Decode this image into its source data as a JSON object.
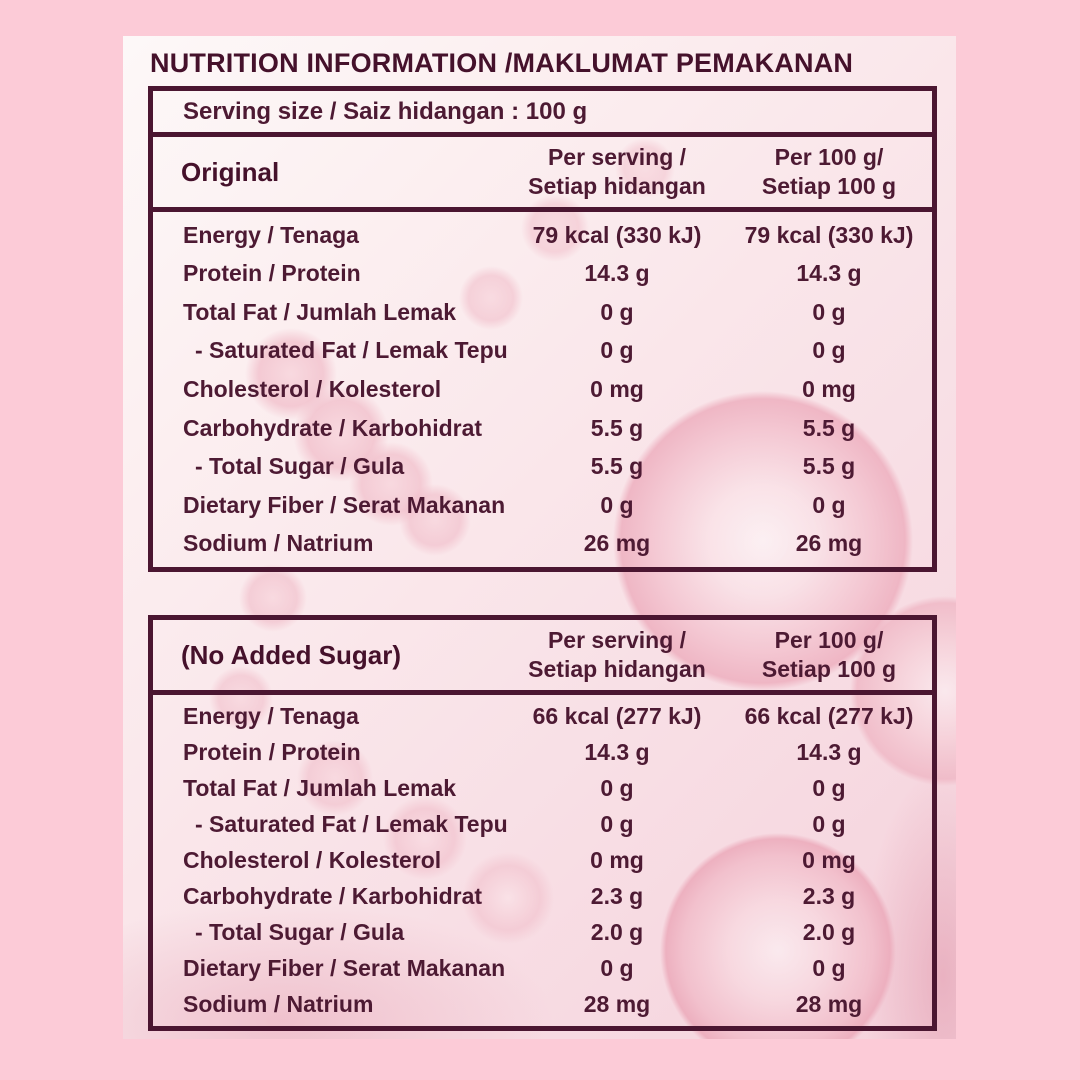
{
  "page": {
    "title": "NUTRITION INFORMATION /MAKLUMAT PEMAKANAN",
    "serving_size": "Serving size / Saiz hidangan : 100 g"
  },
  "colors": {
    "outer_background": "#fccbd7",
    "panel_background": "#f9e3e8",
    "maroon_text": "#4d1a33",
    "maroon_border": "#4b1631"
  },
  "tables": [
    {
      "name": "Original",
      "columns": [
        {
          "line1": "Per serving /",
          "line2": "Setiap hidangan"
        },
        {
          "line1": "Per 100 g/",
          "line2": "Setiap 100 g"
        }
      ],
      "rows": [
        {
          "label": "Energy / Tenaga",
          "per_serving": "79 kcal (330 kJ)",
          "per_100g": "79 kcal (330 kJ)",
          "indent": false
        },
        {
          "label": "Protein / Protein",
          "per_serving": "14.3 g",
          "per_100g": "14.3 g",
          "indent": false
        },
        {
          "label": "Total Fat / Jumlah Lemak",
          "per_serving": "0 g",
          "per_100g": "0 g",
          "indent": false
        },
        {
          "label": "- Saturated Fat / Lemak Tepu",
          "per_serving": "0 g",
          "per_100g": "0 g",
          "indent": true
        },
        {
          "label": "Cholesterol / Kolesterol",
          "per_serving": "0 mg",
          "per_100g": "0 mg",
          "indent": false
        },
        {
          "label": "Carbohydrate / Karbohidrat",
          "per_serving": "5.5 g",
          "per_100g": "5.5 g",
          "indent": false
        },
        {
          "label": "- Total Sugar / Gula",
          "per_serving": "5.5 g",
          "per_100g": "5.5 g",
          "indent": true
        },
        {
          "label": "Dietary Fiber / Serat Makanan",
          "per_serving": "0 g",
          "per_100g": "0 g",
          "indent": false
        },
        {
          "label": "Sodium / Natrium",
          "per_serving": "26 mg",
          "per_100g": "26 mg",
          "indent": false
        }
      ]
    },
    {
      "name": "(No Added Sugar)",
      "columns": [
        {
          "line1": "Per serving /",
          "line2": "Setiap hidangan"
        },
        {
          "line1": "Per 100 g/",
          "line2": "Setiap 100 g"
        }
      ],
      "rows": [
        {
          "label": "Energy / Tenaga",
          "per_serving": "66 kcal (277 kJ)",
          "per_100g": "66 kcal (277 kJ)",
          "indent": false
        },
        {
          "label": "Protein / Protein",
          "per_serving": "14.3 g",
          "per_100g": "14.3 g",
          "indent": false
        },
        {
          "label": "Total Fat / Jumlah Lemak",
          "per_serving": "0 g",
          "per_100g": "0 g",
          "indent": false
        },
        {
          "label": "- Saturated Fat / Lemak Tepu",
          "per_serving": "0 g",
          "per_100g": "0 g",
          "indent": true
        },
        {
          "label": "Cholesterol / Kolesterol",
          "per_serving": "0 mg",
          "per_100g": "0 mg",
          "indent": false
        },
        {
          "label": "Carbohydrate / Karbohidrat",
          "per_serving": "2.3 g",
          "per_100g": "2.3 g",
          "indent": false
        },
        {
          "label": "- Total Sugar / Gula",
          "per_serving": "2.0 g",
          "per_100g": "2.0 g",
          "indent": true
        },
        {
          "label": "Dietary Fiber / Serat Makanan",
          "per_serving": "0 g",
          "per_100g": "0 g",
          "indent": false
        },
        {
          "label": "Sodium / Natrium",
          "per_serving": "28 mg",
          "per_100g": "28 mg",
          "indent": false
        }
      ]
    }
  ]
}
